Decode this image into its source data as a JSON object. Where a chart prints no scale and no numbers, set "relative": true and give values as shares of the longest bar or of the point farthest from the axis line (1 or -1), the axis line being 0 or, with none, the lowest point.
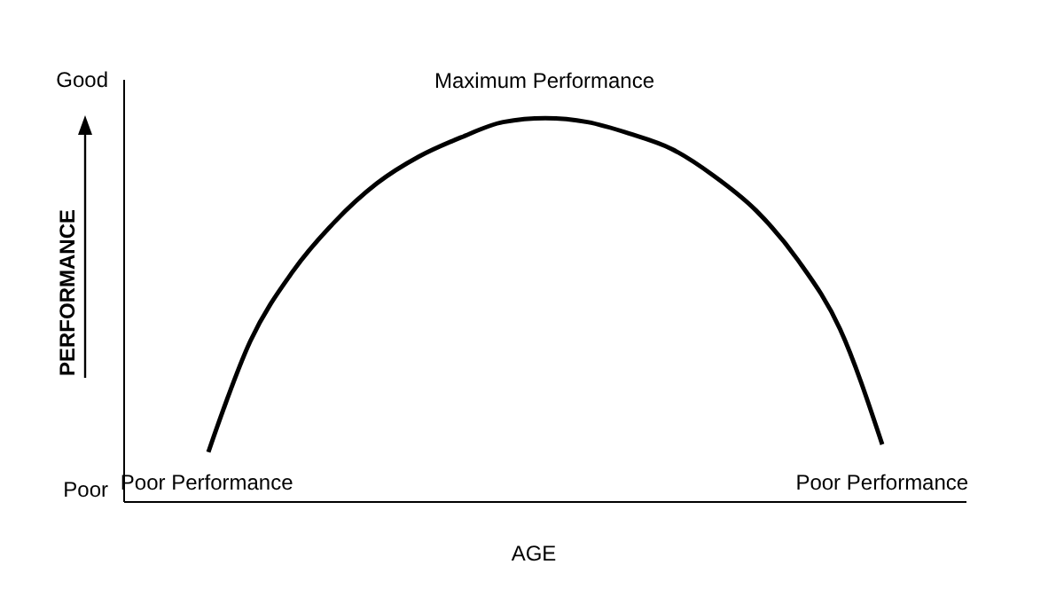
{
  "chart_data": {
    "type": "line",
    "relative": true,
    "xlabel": "AGE",
    "ylabel": "PERFORMANCE",
    "color": "#000000",
    "marker": "none",
    "line_style": "solid",
    "grid": false,
    "legend": false,
    "categories": [
      null,
      null,
      null,
      null,
      null,
      null,
      null,
      null,
      null,
      null,
      null,
      null,
      null,
      null,
      null,
      null,
      null,
      null,
      null,
      null,
      null
    ],
    "values": [
      null,
      null,
      0.13,
      0.42,
      0.6,
      0.73,
      0.83,
      0.9,
      0.95,
      0.99,
      1,
      0.99,
      0.96,
      0.92,
      0.85,
      0.76,
      0.63,
      0.45,
      0.15,
      null,
      null
    ],
    "annotations": [
      "Good",
      "Poor",
      {
        "text": "Maximum Performance",
        "y": 1
      },
      {
        "text": "Poor Performance",
        "y": 0.13
      },
      {
        "text": "Poor Performance",
        "y": 0.15
      }
    ]
  }
}
